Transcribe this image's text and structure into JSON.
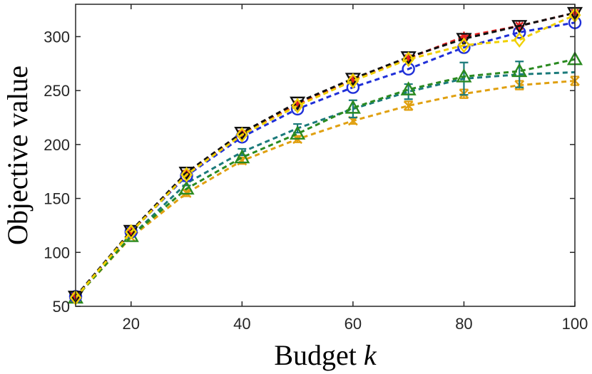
{
  "chart_data": {
    "type": "line",
    "title": "",
    "xlabel": "Budget",
    "xlabel_var": "k",
    "ylabel": "Objective value",
    "xlim": [
      10,
      100
    ],
    "ylim": [
      50,
      330
    ],
    "xticks": [
      20,
      40,
      60,
      80,
      100
    ],
    "yticks": [
      50,
      100,
      150,
      200,
      250,
      300
    ],
    "grid": false,
    "legend": "none",
    "x": [
      10,
      20,
      30,
      40,
      50,
      60,
      70,
      80,
      90,
      100
    ],
    "series": [
      {
        "color": "#e0a010",
        "marker": "x",
        "values": [
          58,
          114,
          155,
          185,
          205,
          222,
          236,
          247,
          255,
          259
        ],
        "errors": [
          0,
          0,
          3,
          3,
          3,
          3,
          4,
          4,
          4,
          4
        ]
      },
      {
        "color": "#1a7a7a",
        "marker": "none",
        "values": [
          58,
          115,
          164,
          193,
          215,
          233,
          249,
          261,
          265,
          267
        ],
        "errors": [
          0,
          0,
          2,
          3,
          4,
          8,
          7,
          15,
          12,
          0
        ]
      },
      {
        "color": "#2a8a20",
        "marker": "triangle",
        "values": [
          58,
          115,
          159,
          188,
          210,
          234,
          251,
          263,
          268,
          279
        ],
        "errors": [
          0,
          0,
          0,
          0,
          0,
          0,
          0,
          0,
          0,
          0
        ]
      },
      {
        "color": "#1f2fd8",
        "marker": "circle",
        "values": [
          59,
          119,
          171,
          207,
          233,
          253,
          270,
          290,
          304,
          313
        ],
        "errors": [
          0,
          0,
          0,
          0,
          0,
          0,
          0,
          0,
          0,
          0
        ]
      },
      {
        "color": "#e52020",
        "marker": "star",
        "values": [
          59,
          119,
          173,
          210,
          237,
          260,
          280,
          300,
          310,
          322
        ],
        "errors": [
          0,
          0,
          0,
          0,
          0,
          0,
          0,
          0,
          0,
          0
        ]
      },
      {
        "color": "#111111",
        "marker": "triangle-down",
        "values": [
          59,
          120,
          174,
          211,
          239,
          261,
          281,
          298,
          310,
          322
        ],
        "errors": [
          0,
          0,
          0,
          0,
          0,
          0,
          0,
          0,
          0,
          0
        ]
      },
      {
        "color": "#f0d000",
        "marker": "diamond",
        "values": [
          58,
          119,
          172,
          209,
          236,
          259,
          279,
          292,
          297,
          320
        ],
        "errors": [
          0,
          0,
          0,
          0,
          0,
          0,
          0,
          0,
          0,
          0
        ]
      }
    ]
  }
}
